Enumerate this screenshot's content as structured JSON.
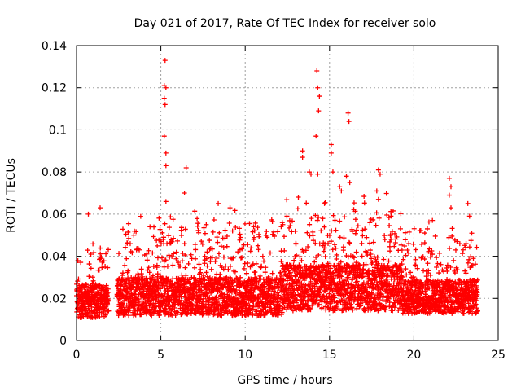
{
  "chart_data": {
    "type": "scatter",
    "title": "Day 021 of 2017, Rate Of TEC Index for receiver solo",
    "xlabel": "GPS time / hours",
    "ylabel": "ROTI / TECUs",
    "xlim": [
      0,
      25
    ],
    "ylim": [
      0,
      0.14
    ],
    "grid": true,
    "marker": "+",
    "color": "#ff0000",
    "x_ticks": [
      "0",
      "5",
      "10",
      "15",
      "20",
      "25"
    ],
    "y_ticks": [
      "0",
      "0.02",
      "0.04",
      "0.06",
      "0.08",
      "0.1",
      "0.12",
      "0.14"
    ],
    "series": [
      {
        "name": "ROTI",
        "segments": [
          {
            "start": 0.0,
            "end": 1.9,
            "base": 0.018,
            "spread": 0.016,
            "peak": 0.045
          },
          {
            "start": 2.4,
            "end": 12.2,
            "base": 0.02,
            "spread": 0.018,
            "peak": 0.052
          },
          {
            "start": 12.2,
            "end": 19.3,
            "base": 0.024,
            "spread": 0.022,
            "peak": 0.06
          },
          {
            "start": 19.3,
            "end": 23.8,
            "base": 0.02,
            "spread": 0.016,
            "peak": 0.05
          }
        ],
        "outliers": [
          {
            "x": 5.25,
            "y": 0.133
          },
          {
            "x": 5.2,
            "y": 0.121
          },
          {
            "x": 5.3,
            "y": 0.12
          },
          {
            "x": 5.2,
            "y": 0.115
          },
          {
            "x": 5.25,
            "y": 0.112
          },
          {
            "x": 5.2,
            "y": 0.097
          },
          {
            "x": 5.3,
            "y": 0.089
          },
          {
            "x": 5.3,
            "y": 0.083
          },
          {
            "x": 6.5,
            "y": 0.082
          },
          {
            "x": 6.4,
            "y": 0.07
          },
          {
            "x": 5.3,
            "y": 0.066
          },
          {
            "x": 1.4,
            "y": 0.063
          },
          {
            "x": 0.7,
            "y": 0.06
          },
          {
            "x": 8.4,
            "y": 0.065
          },
          {
            "x": 9.1,
            "y": 0.063
          },
          {
            "x": 13.4,
            "y": 0.09
          },
          {
            "x": 13.4,
            "y": 0.087
          },
          {
            "x": 13.8,
            "y": 0.08
          },
          {
            "x": 13.9,
            "y": 0.079
          },
          {
            "x": 14.3,
            "y": 0.079
          },
          {
            "x": 14.25,
            "y": 0.128
          },
          {
            "x": 14.3,
            "y": 0.12
          },
          {
            "x": 14.4,
            "y": 0.116
          },
          {
            "x": 14.35,
            "y": 0.109
          },
          {
            "x": 14.2,
            "y": 0.097
          },
          {
            "x": 15.1,
            "y": 0.093
          },
          {
            "x": 15.1,
            "y": 0.089
          },
          {
            "x": 15.2,
            "y": 0.08
          },
          {
            "x": 16.1,
            "y": 0.108
          },
          {
            "x": 16.15,
            "y": 0.104
          },
          {
            "x": 16.0,
            "y": 0.078
          },
          {
            "x": 16.2,
            "y": 0.075
          },
          {
            "x": 14.7,
            "y": 0.065
          },
          {
            "x": 15.6,
            "y": 0.073
          },
          {
            "x": 17.9,
            "y": 0.081
          },
          {
            "x": 18.0,
            "y": 0.079
          },
          {
            "x": 17.8,
            "y": 0.071
          },
          {
            "x": 17.9,
            "y": 0.067
          },
          {
            "x": 22.1,
            "y": 0.077
          },
          {
            "x": 22.2,
            "y": 0.073
          },
          {
            "x": 22.1,
            "y": 0.069
          },
          {
            "x": 22.2,
            "y": 0.063
          },
          {
            "x": 23.2,
            "y": 0.065
          },
          {
            "x": 23.3,
            "y": 0.059
          },
          {
            "x": 21.1,
            "y": 0.057
          },
          {
            "x": 20.8,
            "y": 0.053
          },
          {
            "x": 10.5,
            "y": 0.054
          },
          {
            "x": 12.2,
            "y": 0.056
          },
          {
            "x": 11.3,
            "y": 0.049
          },
          {
            "x": 19.7,
            "y": 0.046
          }
        ]
      }
    ]
  }
}
